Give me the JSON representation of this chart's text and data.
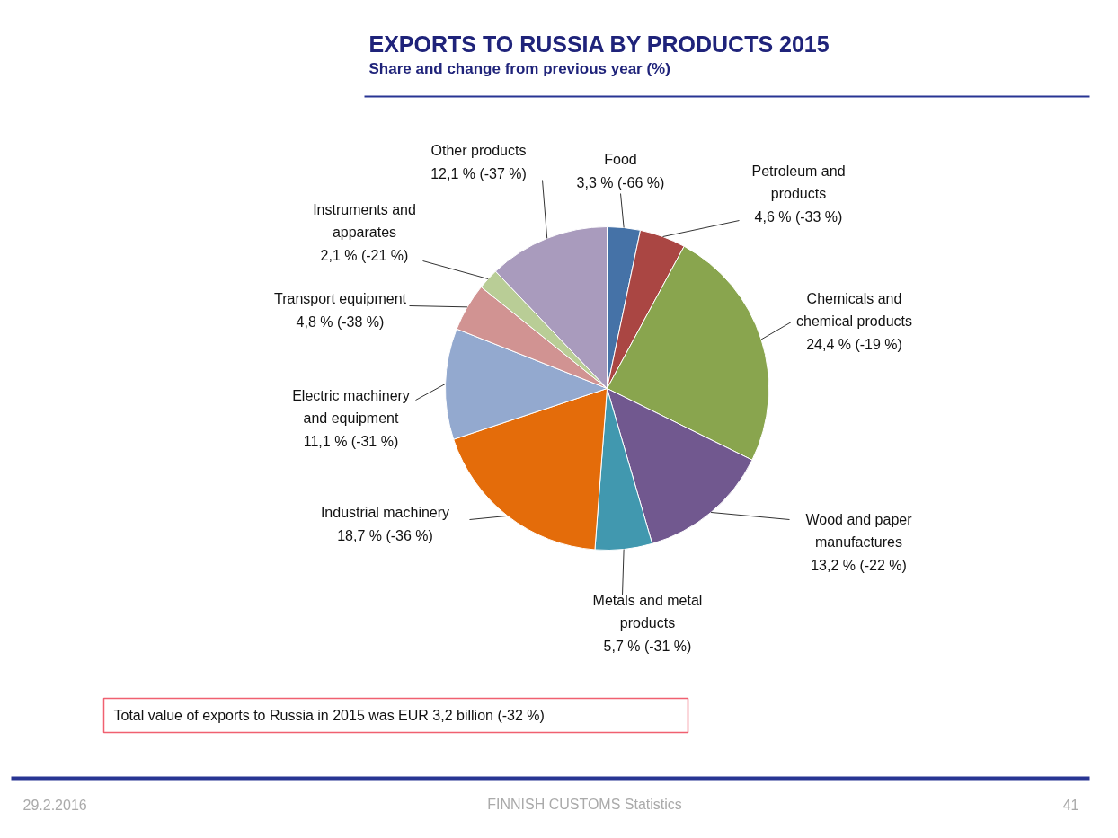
{
  "chart_data": {
    "type": "pie",
    "title": "EXPORTS TO RUSSIA BY PRODUCTS 2015",
    "subtitle": "Share and change from previous year (%)",
    "categories": [
      "Food",
      "Petroleum and\nproducts",
      "Chemicals and\nchemical products",
      "Wood and paper\nmanufactures",
      "Metals and metal\nproducts",
      "Industrial machinery",
      "Electric machinery\nand equipment",
      "Transport equipment",
      "Instruments and\napparates",
      "Other products"
    ],
    "values": [
      3.3,
      4.6,
      24.4,
      13.2,
      5.7,
      18.7,
      11.1,
      4.8,
      2.1,
      12.1
    ],
    "colors": [
      "#4572a7",
      "#aa4643",
      "#89a54e",
      "#71588f",
      "#4198af",
      "#e46c0a",
      "#93a9cf",
      "#d19392",
      "#b9cd96",
      "#a99bbd"
    ],
    "value_labels": [
      "3,3 % (-66 %)",
      "4,6 % (-33 %)",
      "24,4 % (-19 %)",
      "13,2 % (-22 %)",
      "5,7 % (-31 %)",
      "18,7 % (-36 %)",
      "11,1 % (-31 %)",
      "4,8 % (-38 %)",
      "2,1 % (-21 %)",
      "12,1 % (-37 %)"
    ],
    "annotations": [
      "Total value of exports to Russia in 2015 was EUR 3,2 billion (-32 %)",
      "29.2.2016",
      "FINNISH CUSTOMS Statistics",
      "41"
    ]
  }
}
